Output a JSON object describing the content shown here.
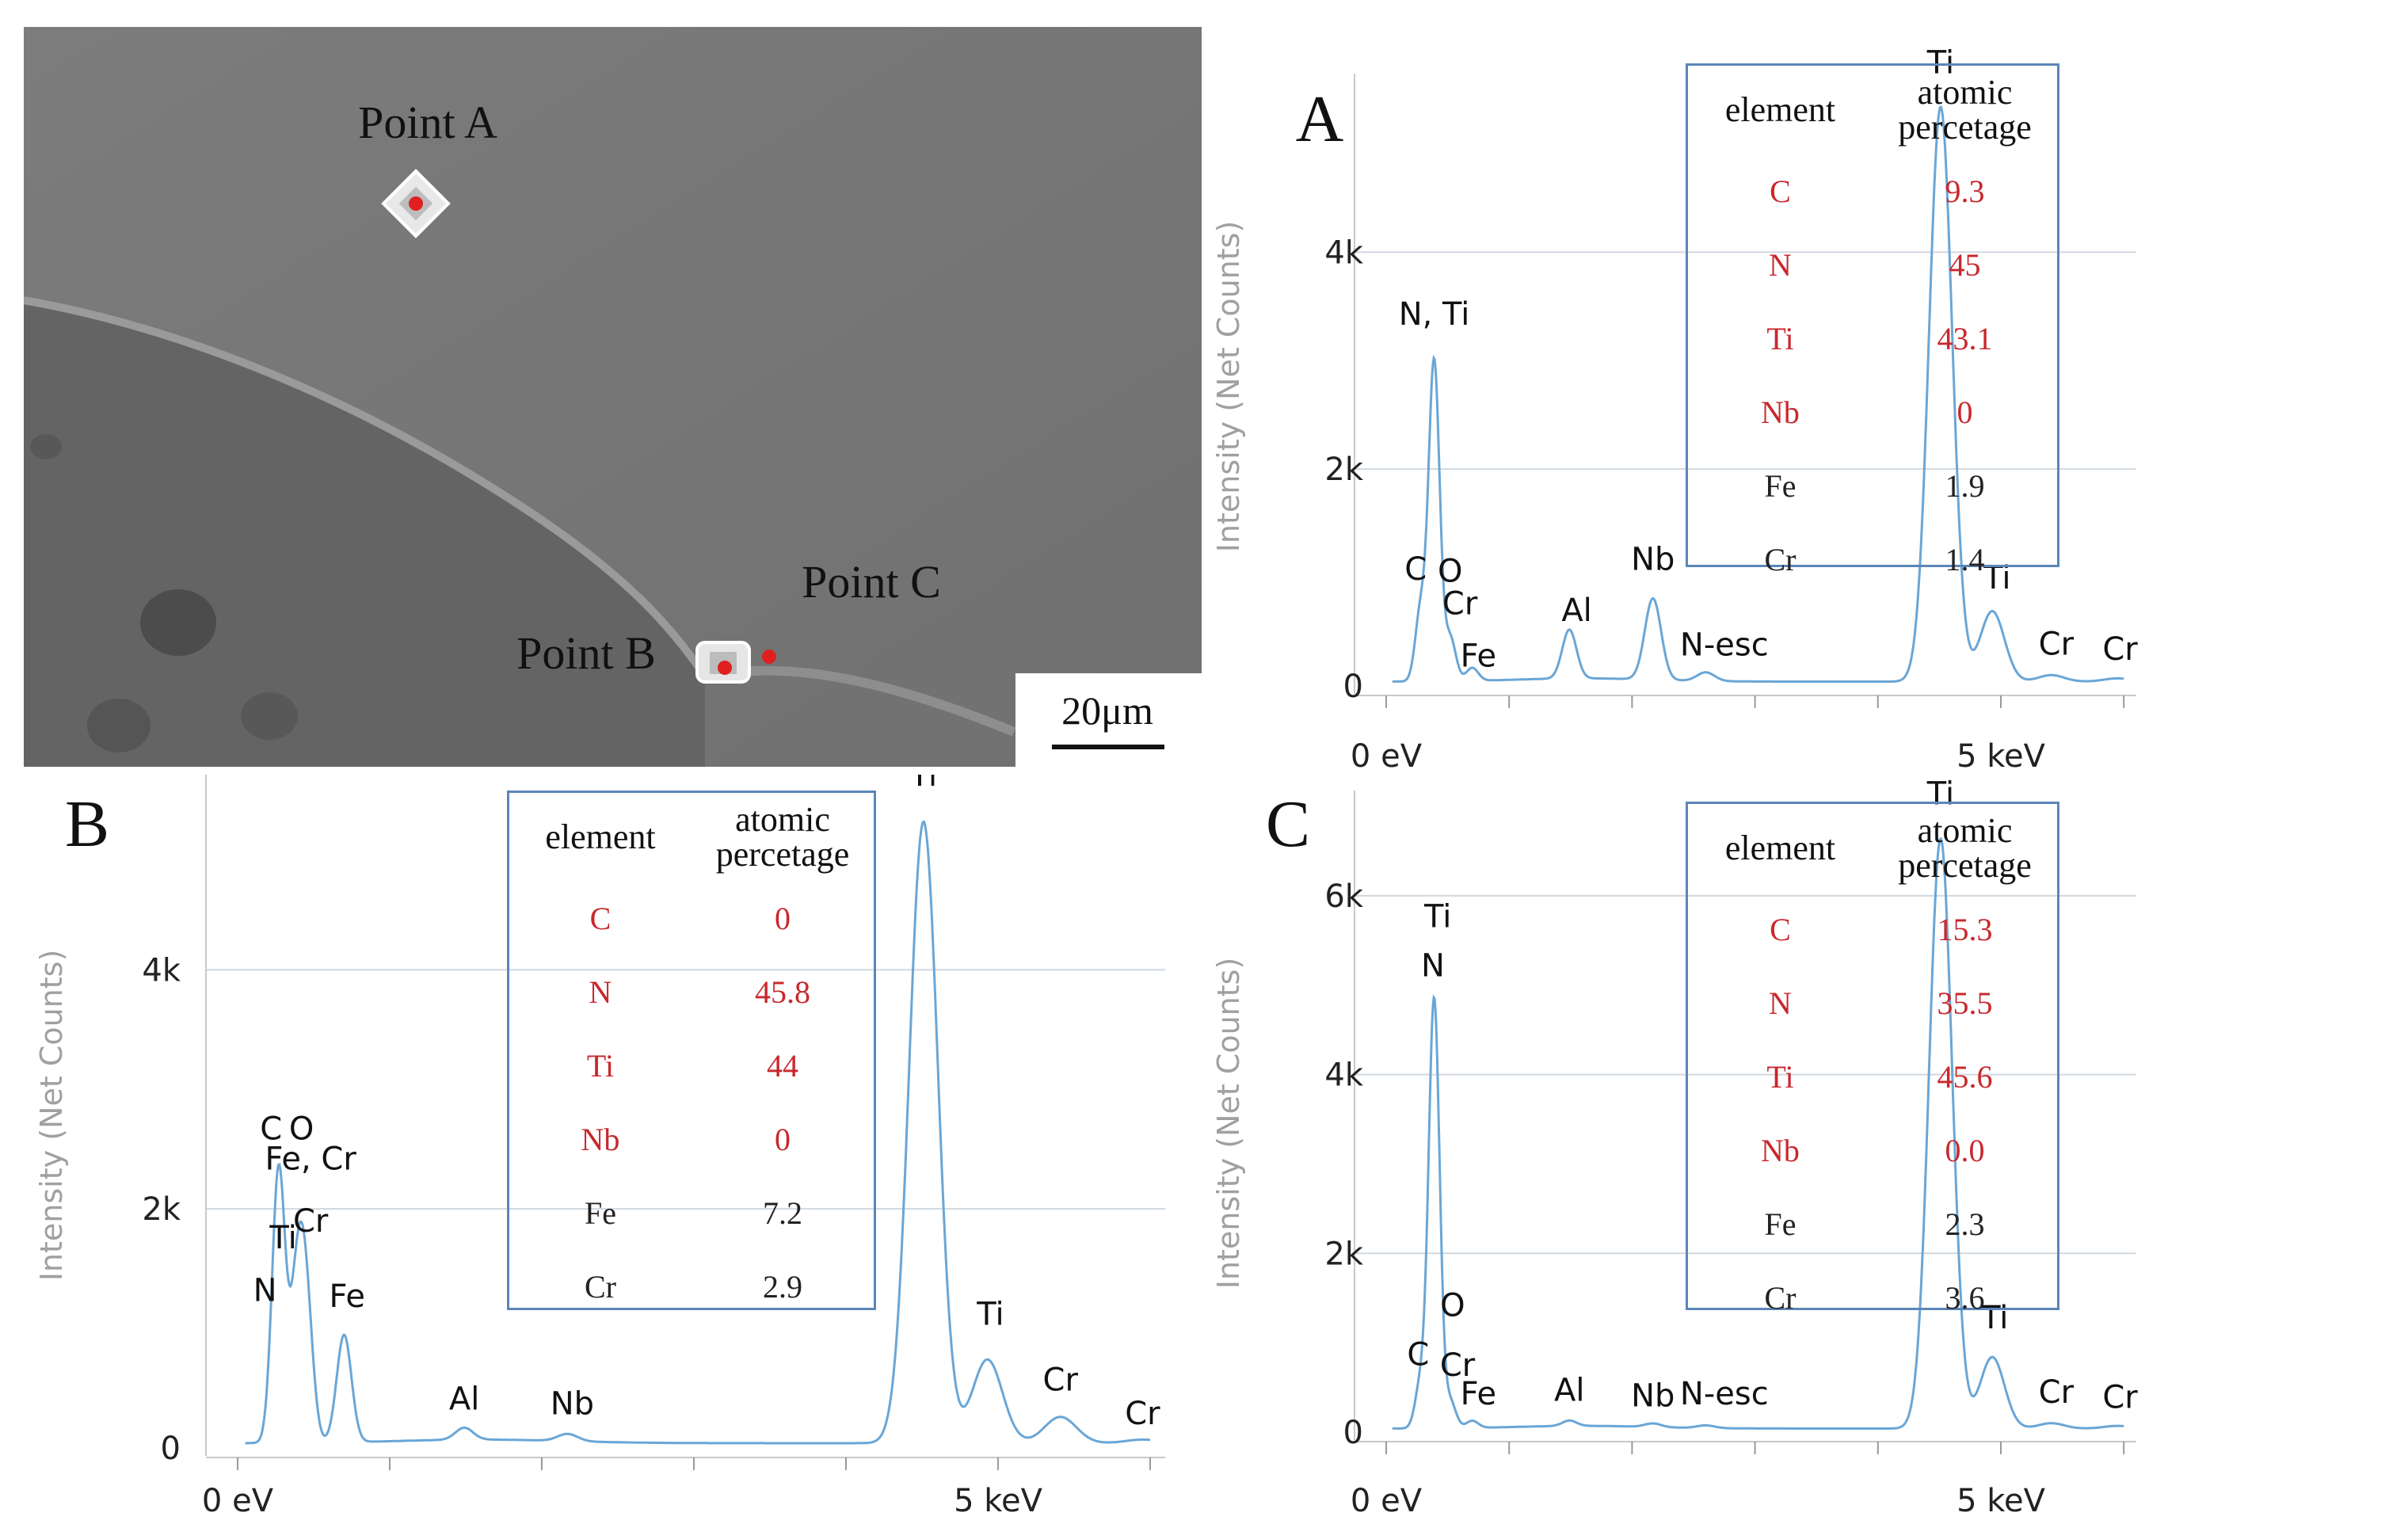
{
  "sem_image": {
    "labels": [
      "Point A",
      "Point B",
      "Point C"
    ],
    "scale_bar": "20μm"
  },
  "panels": [
    {
      "id": "A",
      "letter": "A",
      "ylabel": "Intensity (Net Counts)",
      "yticks": [
        "0",
        "2k",
        "4k"
      ],
      "xticks": [
        "0 eV",
        "5 keV"
      ],
      "peak_labels": [
        "C",
        "O",
        "N, Ti",
        "Cr",
        "Fe",
        "Al",
        "Nb",
        "N-esc",
        "Ti",
        "Ti",
        "Cr",
        "Cr"
      ],
      "table": {
        "headers": [
          "element",
          "atomic percetage"
        ],
        "rows": [
          [
            "C",
            "9.3"
          ],
          [
            "N",
            "45"
          ],
          [
            "Ti",
            "43.1"
          ],
          [
            "Nb",
            "0"
          ],
          [
            "Fe",
            "1.9"
          ],
          [
            "Cr",
            "1.4"
          ]
        ]
      }
    },
    {
      "id": "B",
      "letter": "B",
      "ylabel": "Intensity (Net Counts)",
      "yticks": [
        "0",
        "2k",
        "4k"
      ],
      "xticks": [
        "0 eV",
        "5 keV"
      ],
      "peak_labels": [
        "C",
        "O",
        "Fe, Cr",
        "Cr",
        "Ti",
        "N",
        "Fe",
        "Al",
        "Nb",
        "Ti",
        "Ti",
        "Cr",
        "Cr"
      ],
      "table": {
        "headers": [
          "element",
          "atomic percetage"
        ],
        "rows": [
          [
            "C",
            "0"
          ],
          [
            "N",
            "45.8"
          ],
          [
            "Ti",
            "44"
          ],
          [
            "Nb",
            "0"
          ],
          [
            "Fe",
            "7.2"
          ],
          [
            "Cr",
            "2.9"
          ]
        ]
      }
    },
    {
      "id": "C",
      "letter": "C",
      "ylabel": "Intensity (Net Counts)",
      "yticks": [
        "0",
        "2k",
        "4k",
        "6k"
      ],
      "xticks": [
        "0 eV",
        "5 keV"
      ],
      "peak_labels": [
        "Ti",
        "N",
        "O",
        "C",
        "Cr",
        "Fe",
        "Al",
        "Nb",
        "N-esc",
        "Ti",
        "Ti",
        "Cr",
        "Cr"
      ],
      "table": {
        "headers": [
          "element",
          "atomic percetage"
        ],
        "rows": [
          [
            "C",
            "15.3"
          ],
          [
            "N",
            "35.5"
          ],
          [
            "Ti",
            "45.6"
          ],
          [
            "Nb",
            "0.0"
          ],
          [
            "Fe",
            "2.3"
          ],
          [
            "Cr",
            "3.6"
          ]
        ]
      }
    }
  ],
  "colors": {
    "spectrum": "#6aa6d6",
    "table_border": "#5b86b8",
    "red_text": "#c8282d",
    "grid": "#d0d8e0",
    "axis_text": "#a0a0a0",
    "marker": "#e02020"
  },
  "chart_data": [
    {
      "type": "line",
      "title": "A",
      "ylabel": "Intensity (Net Counts)",
      "x_unit": "keV",
      "xlim": [
        0,
        6
      ],
      "ylim": [
        0,
        5500
      ],
      "peaks": [
        {
          "label": "C",
          "x": 0.28,
          "y": 650
        },
        {
          "label": "N, Ti",
          "x": 0.39,
          "y": 2950
        },
        {
          "label": "O",
          "x": 0.52,
          "y": 400
        },
        {
          "label": "Fe",
          "x": 0.7,
          "y": 120
        },
        {
          "label": "Al",
          "x": 1.49,
          "y": 450
        },
        {
          "label": "Nb",
          "x": 2.17,
          "y": 750
        },
        {
          "label": "N-esc",
          "x": 2.6,
          "y": 80
        },
        {
          "label": "Ti",
          "x": 4.51,
          "y": 5300
        },
        {
          "label": "Ti",
          "x": 4.93,
          "y": 650
        },
        {
          "label": "Cr",
          "x": 5.41,
          "y": 60
        },
        {
          "label": "Cr",
          "x": 5.95,
          "y": 30
        }
      ],
      "table": [
        [
          "C",
          9.3
        ],
        [
          "N",
          45
        ],
        [
          "Ti",
          43.1
        ],
        [
          "Nb",
          0
        ],
        [
          "Fe",
          1.9
        ],
        [
          "Cr",
          1.4
        ]
      ]
    },
    {
      "type": "line",
      "title": "B",
      "ylabel": "Intensity (Net Counts)",
      "x_unit": "keV",
      "xlim": [
        0,
        6
      ],
      "ylim": [
        0,
        5500
      ],
      "peaks": [
        {
          "label": "C",
          "x": 0.27,
          "y": 2300
        },
        {
          "label": "N",
          "x": 0.39,
          "y": 1200
        },
        {
          "label": "Ti",
          "x": 0.45,
          "y": 1100
        },
        {
          "label": "Fe",
          "x": 0.7,
          "y": 900
        },
        {
          "label": "Al",
          "x": 1.49,
          "y": 100
        },
        {
          "label": "Nb",
          "x": 2.17,
          "y": 60
        },
        {
          "label": "Ti",
          "x": 4.51,
          "y": 5200
        },
        {
          "label": "Ti",
          "x": 4.93,
          "y": 700
        },
        {
          "label": "Cr",
          "x": 5.41,
          "y": 220
        },
        {
          "label": "Cr",
          "x": 5.95,
          "y": 30
        }
      ],
      "table": [
        [
          "C",
          0
        ],
        [
          "N",
          45.8
        ],
        [
          "Ti",
          44
        ],
        [
          "Nb",
          0
        ],
        [
          "Fe",
          7.2
        ],
        [
          "Cr",
          2.9
        ]
      ]
    },
    {
      "type": "line",
      "title": "C",
      "ylabel": "Intensity (Net Counts)",
      "x_unit": "keV",
      "xlim": [
        0,
        6
      ],
      "ylim": [
        0,
        7000
      ],
      "peaks": [
        {
          "label": "C",
          "x": 0.28,
          "y": 500
        },
        {
          "label": "N",
          "x": 0.39,
          "y": 4800
        },
        {
          "label": "O",
          "x": 0.52,
          "y": 300
        },
        {
          "label": "Fe",
          "x": 0.7,
          "y": 80
        },
        {
          "label": "Al",
          "x": 1.49,
          "y": 60
        },
        {
          "label": "Nb",
          "x": 2.17,
          "y": 40
        },
        {
          "label": "N-esc",
          "x": 2.6,
          "y": 30
        },
        {
          "label": "Ti",
          "x": 4.51,
          "y": 6600
        },
        {
          "label": "Ti",
          "x": 4.93,
          "y": 800
        },
        {
          "label": "Cr",
          "x": 5.41,
          "y": 60
        },
        {
          "label": "Cr",
          "x": 5.95,
          "y": 30
        }
      ],
      "table": [
        [
          "C",
          15.3
        ],
        [
          "N",
          35.5
        ],
        [
          "Ti",
          45.6
        ],
        [
          "Nb",
          0.0
        ],
        [
          "Fe",
          2.3
        ],
        [
          "Cr",
          3.6
        ]
      ]
    }
  ]
}
